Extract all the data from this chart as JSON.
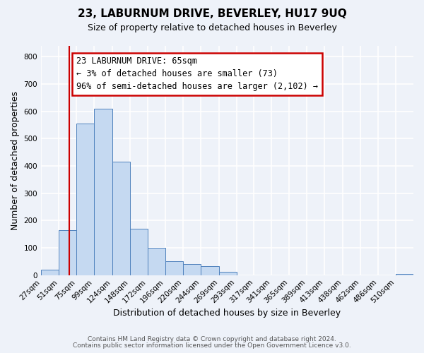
{
  "title": "23, LABURNUM DRIVE, BEVERLEY, HU17 9UQ",
  "subtitle": "Size of property relative to detached houses in Beverley",
  "xlabel": "Distribution of detached houses by size in Beverley",
  "ylabel": "Number of detached properties",
  "bar_color": "#c5d9f1",
  "bar_edge_color": "#4f81bd",
  "bin_labels": [
    "27sqm",
    "51sqm",
    "75sqm",
    "99sqm",
    "124sqm",
    "148sqm",
    "172sqm",
    "196sqm",
    "220sqm",
    "244sqm",
    "269sqm",
    "293sqm",
    "317sqm",
    "341sqm",
    "365sqm",
    "389sqm",
    "413sqm",
    "438sqm",
    "462sqm",
    "486sqm",
    "510sqm"
  ],
  "tick_vals": [
    27,
    51,
    75,
    99,
    124,
    148,
    172,
    196,
    220,
    244,
    269,
    293,
    317,
    341,
    365,
    389,
    413,
    438,
    462,
    486,
    510
  ],
  "bar_heights": [
    20,
    165,
    555,
    610,
    415,
    170,
    100,
    50,
    40,
    32,
    13,
    0,
    0,
    0,
    0,
    0,
    0,
    0,
    0,
    0,
    5
  ],
  "ylim": [
    0,
    840
  ],
  "yticks": [
    0,
    100,
    200,
    300,
    400,
    500,
    600,
    700,
    800
  ],
  "property_line_x": 65,
  "property_line_color": "#cc0000",
  "annotation_line1": "23 LABURNUM DRIVE: 65sqm",
  "annotation_line2": "← 3% of detached houses are smaller (73)",
  "annotation_line3": "96% of semi-detached houses are larger (2,102) →",
  "annotation_box_color": "#ffffff",
  "annotation_box_edge": "#cc0000",
  "footer1": "Contains HM Land Registry data © Crown copyright and database right 2024.",
  "footer2": "Contains public sector information licensed under the Open Government Licence v3.0.",
  "background_color": "#eef2f9",
  "grid_color": "#ffffff",
  "title_fontsize": 11,
  "subtitle_fontsize": 9,
  "axis_label_fontsize": 9,
  "tick_fontsize": 7.5,
  "ylabel_fontsize": 9,
  "annotation_fontsize": 8.5,
  "footer_fontsize": 6.5
}
